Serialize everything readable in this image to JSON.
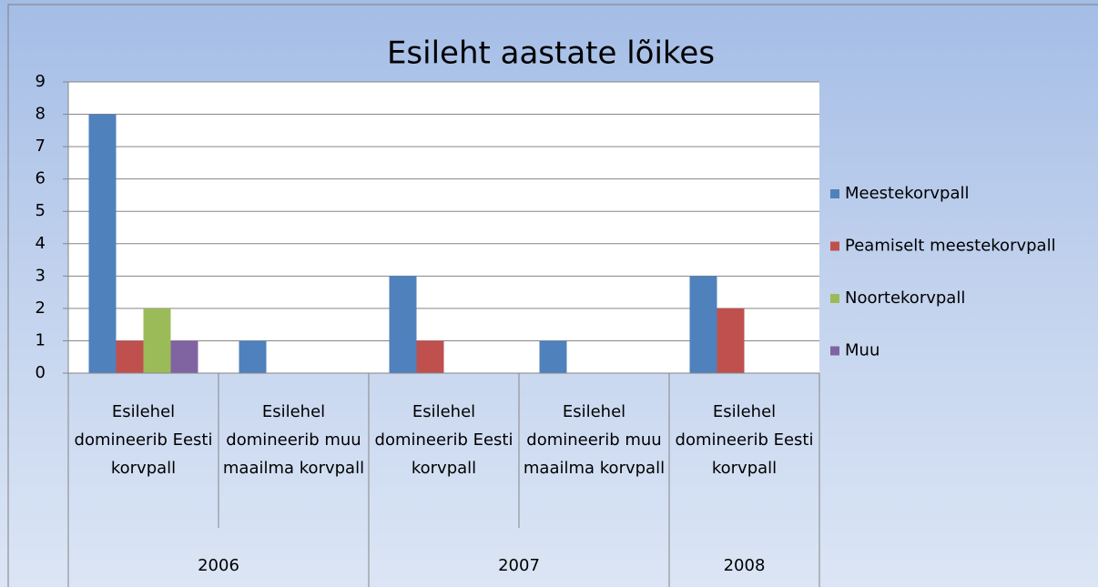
{
  "chart_data": {
    "type": "bar",
    "title": "Esileht aastate lõikes",
    "groups": [
      {
        "name": "2006",
        "categories": [
          "Esilehel domineerib Eesti korvpall",
          "Esilehel domineerib muu maailma korvpall"
        ]
      },
      {
        "name": "2007",
        "categories": [
          "Esilehel domineerib Eesti korvpall",
          "Esilehel domineerib muu maailma korvpall"
        ]
      },
      {
        "name": "2008",
        "categories": [
          "Esilehel domineerib Eesti korvpall"
        ]
      }
    ],
    "series": [
      {
        "name": "Meestekorvpall",
        "color": "#4f81bd",
        "values": [
          8,
          1,
          3,
          1,
          3
        ]
      },
      {
        "name": "Peamiselt meestekorvpall",
        "color": "#c0504d",
        "values": [
          1,
          0,
          1,
          0,
          2
        ]
      },
      {
        "name": "Noortekorvpall",
        "color": "#9bbb59",
        "values": [
          2,
          0,
          0,
          0,
          0
        ]
      },
      {
        "name": "Muu",
        "color": "#8064a2",
        "values": [
          1,
          0,
          0,
          0,
          0
        ]
      }
    ],
    "ylim": [
      0,
      9
    ],
    "yticks": [
      0,
      1,
      2,
      3,
      4,
      5,
      6,
      7,
      8,
      9
    ],
    "grid": true,
    "legend": "right"
  }
}
